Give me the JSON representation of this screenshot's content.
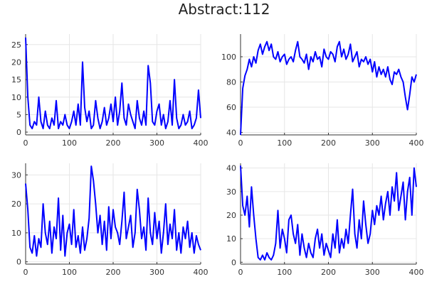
{
  "figure": {
    "title": "Abstract:112",
    "line_color": "#0000ff"
  },
  "chart_data": [
    {
      "type": "line",
      "x": [
        0,
        5,
        10,
        15,
        20,
        25,
        30,
        35,
        40,
        45,
        50,
        55,
        60,
        65,
        70,
        75,
        80,
        85,
        90,
        95,
        100,
        105,
        110,
        115,
        120,
        125,
        130,
        135,
        140,
        145,
        150,
        155,
        160,
        165,
        170,
        175,
        180,
        185,
        190,
        195,
        200,
        205,
        210,
        215,
        220,
        225,
        230,
        235,
        240,
        245,
        250,
        255,
        260,
        265,
        270,
        275,
        280,
        285,
        290,
        295,
        300,
        305,
        310,
        315,
        320,
        325,
        330,
        335,
        340,
        345,
        350,
        355,
        360,
        365,
        370,
        375,
        380,
        385,
        390,
        395,
        400
      ],
      "series": [
        {
          "values": [
            27,
            10,
            2,
            1,
            3,
            2,
            10,
            3,
            1,
            6,
            2,
            1,
            4,
            2,
            9,
            1,
            3,
            2,
            5,
            2,
            1,
            3,
            6,
            2,
            8,
            2,
            20,
            7,
            3,
            6,
            1,
            2,
            9,
            4,
            1,
            3,
            7,
            2,
            4,
            8,
            3,
            10,
            2,
            6,
            14,
            4,
            2,
            8,
            5,
            3,
            1,
            9,
            4,
            2,
            6,
            2,
            19,
            14,
            3,
            2,
            6,
            8,
            2,
            5,
            1,
            3,
            9,
            2,
            15,
            4,
            1,
            2,
            5,
            2,
            3,
            6,
            1,
            2,
            4,
            12,
            4
          ]
        }
      ],
      "xlim": [
        0,
        400
      ],
      "ylim": [
        -0.8,
        28
      ],
      "xticks": [
        0,
        100,
        200,
        300,
        400
      ],
      "yticks": [
        0,
        5,
        10,
        15,
        20,
        25
      ],
      "grid": true,
      "legend": false
    },
    {
      "type": "line",
      "x": [
        0,
        5,
        10,
        15,
        20,
        25,
        30,
        35,
        40,
        45,
        50,
        55,
        60,
        65,
        70,
        75,
        80,
        85,
        90,
        95,
        100,
        105,
        110,
        115,
        120,
        125,
        130,
        135,
        140,
        145,
        150,
        155,
        160,
        165,
        170,
        175,
        180,
        185,
        190,
        195,
        200,
        205,
        210,
        215,
        220,
        225,
        230,
        235,
        240,
        245,
        250,
        255,
        260,
        265,
        270,
        275,
        280,
        285,
        290,
        295,
        300,
        305,
        310,
        315,
        320,
        325,
        330,
        335,
        340,
        345,
        350,
        355,
        360,
        365,
        370,
        375,
        380,
        385,
        390,
        395,
        400
      ],
      "series": [
        {
          "values": [
            38,
            75,
            85,
            90,
            98,
            92,
            100,
            95,
            105,
            110,
            102,
            108,
            112,
            105,
            110,
            100,
            98,
            104,
            96,
            100,
            102,
            94,
            98,
            100,
            96,
            105,
            112,
            100,
            98,
            95,
            102,
            90,
            100,
            96,
            104,
            98,
            100,
            92,
            106,
            100,
            98,
            104,
            102,
            96,
            108,
            112,
            100,
            106,
            98,
            102,
            110,
            96,
            100,
            104,
            92,
            98,
            96,
            100,
            94,
            98,
            88,
            96,
            84,
            92,
            86,
            90,
            84,
            92,
            82,
            78,
            88,
            86,
            90,
            84,
            80,
            68,
            58,
            70,
            84,
            80,
            86
          ]
        }
      ],
      "xlim": [
        0,
        400
      ],
      "ylim": [
        38,
        118
      ],
      "xticks": [
        0,
        100,
        200,
        300,
        400
      ],
      "yticks": [
        40,
        60,
        80,
        100
      ],
      "grid": true,
      "legend": false
    },
    {
      "type": "line",
      "x": [
        0,
        5,
        10,
        15,
        20,
        25,
        30,
        35,
        40,
        45,
        50,
        55,
        60,
        65,
        70,
        75,
        80,
        85,
        90,
        95,
        100,
        105,
        110,
        115,
        120,
        125,
        130,
        135,
        140,
        145,
        150,
        155,
        160,
        165,
        170,
        175,
        180,
        185,
        190,
        195,
        200,
        205,
        210,
        215,
        220,
        225,
        230,
        235,
        240,
        245,
        250,
        255,
        260,
        265,
        270,
        275,
        280,
        285,
        290,
        295,
        300,
        305,
        310,
        315,
        320,
        325,
        330,
        335,
        340,
        345,
        350,
        355,
        360,
        365,
        370,
        375,
        380,
        385,
        390,
        395,
        400
      ],
      "series": [
        {
          "values": [
            27,
            18,
            5,
            3,
            9,
            2,
            8,
            5,
            20,
            10,
            6,
            14,
            3,
            12,
            8,
            22,
            4,
            16,
            2,
            10,
            13,
            6,
            18,
            5,
            9,
            3,
            12,
            4,
            8,
            15,
            33,
            28,
            20,
            10,
            16,
            6,
            14,
            4,
            19,
            8,
            18,
            12,
            10,
            6,
            14,
            24,
            8,
            12,
            16,
            5,
            10,
            25,
            18,
            8,
            12,
            4,
            22,
            10,
            6,
            17,
            8,
            14,
            3,
            10,
            20,
            6,
            13,
            8,
            18,
            4,
            10,
            3,
            12,
            8,
            14,
            5,
            10,
            3,
            9,
            6,
            4
          ]
        }
      ],
      "xlim": [
        0,
        400
      ],
      "ylim": [
        -0.8,
        34
      ],
      "xticks": [
        0,
        100,
        200,
        300,
        400
      ],
      "yticks": [
        0,
        10,
        20,
        30
      ],
      "grid": true,
      "legend": false
    },
    {
      "type": "line",
      "x": [
        0,
        5,
        10,
        15,
        20,
        25,
        30,
        35,
        40,
        45,
        50,
        55,
        60,
        65,
        70,
        75,
        80,
        85,
        90,
        95,
        100,
        105,
        110,
        115,
        120,
        125,
        130,
        135,
        140,
        145,
        150,
        155,
        160,
        165,
        170,
        175,
        180,
        185,
        190,
        195,
        200,
        205,
        210,
        215,
        220,
        225,
        230,
        235,
        240,
        245,
        250,
        255,
        260,
        265,
        270,
        275,
        280,
        285,
        290,
        295,
        300,
        305,
        310,
        315,
        320,
        325,
        330,
        335,
        340,
        345,
        350,
        355,
        360,
        365,
        370,
        375,
        380,
        385,
        390,
        395,
        400
      ],
      "series": [
        {
          "values": [
            41,
            24,
            20,
            28,
            15,
            32,
            20,
            10,
            2,
            1,
            3,
            1,
            4,
            2,
            1,
            3,
            8,
            22,
            6,
            14,
            10,
            4,
            18,
            20,
            12,
            8,
            16,
            3,
            12,
            6,
            2,
            8,
            4,
            2,
            10,
            14,
            6,
            12,
            3,
            8,
            5,
            2,
            12,
            6,
            18,
            4,
            10,
            6,
            14,
            8,
            20,
            31,
            12,
            6,
            18,
            10,
            26,
            16,
            8,
            12,
            22,
            16,
            24,
            20,
            28,
            18,
            25,
            30,
            20,
            32,
            26,
            38,
            22,
            28,
            34,
            18,
            30,
            36,
            20,
            40,
            32
          ]
        }
      ],
      "xlim": [
        0,
        400
      ],
      "ylim": [
        -0.8,
        42
      ],
      "xticks": [
        0,
        100,
        200,
        300,
        400
      ],
      "yticks": [
        0,
        10,
        20,
        30,
        40
      ],
      "grid": true,
      "legend": false
    }
  ]
}
